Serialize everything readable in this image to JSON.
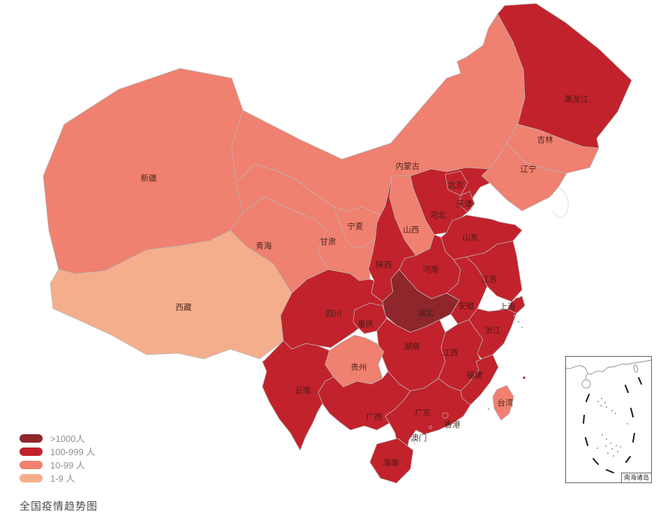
{
  "page": {
    "caption": "全国疫情趋势图"
  },
  "legend": {
    "items": [
      {
        "key": "cat1",
        "label": ">1000人",
        "color": "#8e262c"
      },
      {
        "key": "cat2",
        "label": "100-999 人",
        "color": "#c2222b"
      },
      {
        "key": "cat3",
        "label": "10-99 人",
        "color": "#f0806f"
      },
      {
        "key": "cat4",
        "label": "1-9 人",
        "color": "#f5ae8c"
      }
    ]
  },
  "inset": {
    "label": "南海诸岛"
  },
  "map": {
    "provinces": [
      {
        "id": "xinjiang",
        "label": "新疆",
        "cat": "cat3"
      },
      {
        "id": "xizang",
        "label": "西藏",
        "cat": "cat4"
      },
      {
        "id": "qinghai",
        "label": "青海",
        "cat": "cat3"
      },
      {
        "id": "gansu",
        "label": "甘肃",
        "cat": "cat3"
      },
      {
        "id": "ningxia",
        "label": "宁夏",
        "cat": "cat3"
      },
      {
        "id": "neimenggu",
        "label": "内蒙古",
        "cat": "cat3"
      },
      {
        "id": "heilongjiang",
        "label": "黑龙江",
        "cat": "cat2"
      },
      {
        "id": "jilin",
        "label": "吉林",
        "cat": "cat3"
      },
      {
        "id": "liaoning",
        "label": "辽宁",
        "cat": "cat3"
      },
      {
        "id": "hebei",
        "label": "河北",
        "cat": "cat2"
      },
      {
        "id": "beijing",
        "label": "北京",
        "cat": "cat2"
      },
      {
        "id": "tianjin",
        "label": "天津",
        "cat": "cat2"
      },
      {
        "id": "shanxi",
        "label": "山西",
        "cat": "cat3"
      },
      {
        "id": "shandong",
        "label": "山东",
        "cat": "cat2"
      },
      {
        "id": "henan",
        "label": "河南",
        "cat": "cat2"
      },
      {
        "id": "shaanxi",
        "label": "陕西",
        "cat": "cat2"
      },
      {
        "id": "jiangsu",
        "label": "江苏",
        "cat": "cat2"
      },
      {
        "id": "anhui",
        "label": "安徽",
        "cat": "cat2"
      },
      {
        "id": "shanghai",
        "label": "上海",
        "cat": "cat2"
      },
      {
        "id": "hubei",
        "label": "湖北",
        "cat": "cat1"
      },
      {
        "id": "sichuan",
        "label": "四川",
        "cat": "cat2"
      },
      {
        "id": "chongqing",
        "label": "重庆",
        "cat": "cat2"
      },
      {
        "id": "hunan",
        "label": "湖南",
        "cat": "cat2"
      },
      {
        "id": "jiangxi",
        "label": "江西",
        "cat": "cat2"
      },
      {
        "id": "zhejiang",
        "label": "浙江",
        "cat": "cat2"
      },
      {
        "id": "fujian",
        "label": "福建",
        "cat": "cat2"
      },
      {
        "id": "yunnan",
        "label": "云南",
        "cat": "cat2"
      },
      {
        "id": "guangxi",
        "label": "广西",
        "cat": "cat2"
      },
      {
        "id": "guangdong",
        "label": "广东",
        "cat": "cat2"
      },
      {
        "id": "guizhou",
        "label": "贵州",
        "cat": "cat3"
      },
      {
        "id": "hainan",
        "label": "海南",
        "cat": "cat2"
      },
      {
        "id": "taiwan",
        "label": "台湾",
        "cat": "cat3"
      },
      {
        "id": "xianggang",
        "label": "香港",
        "cat": "cat2"
      },
      {
        "id": "aomen",
        "label": "澳门",
        "cat": "cat2"
      }
    ]
  }
}
